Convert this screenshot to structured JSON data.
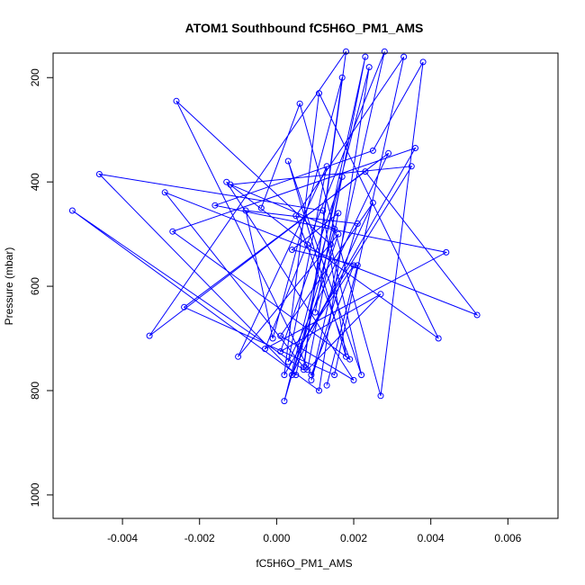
{
  "chart_data": {
    "type": "line",
    "title": "ATOM1 Southbound fC5H6O_PM1_AMS",
    "xlabel": "fC5H6O_PM1_AMS",
    "ylabel": "Pressure (mbar)",
    "xlim": [
      -0.0058,
      0.0073
    ],
    "ylim": [
      1045,
      153
    ],
    "y_reversed": true,
    "x_ticks": [
      {
        "value": -0.004,
        "label": "-0.004"
      },
      {
        "value": -0.002,
        "label": "-0.002"
      },
      {
        "value": 0.0,
        "label": "0.000"
      },
      {
        "value": 0.002,
        "label": "0.002"
      },
      {
        "value": 0.004,
        "label": "0.004"
      },
      {
        "value": 0.006,
        "label": "0.006"
      }
    ],
    "y_ticks": [
      {
        "value": 200,
        "label": "200"
      },
      {
        "value": 400,
        "label": "400"
      },
      {
        "value": 600,
        "label": "600"
      },
      {
        "value": 800,
        "label": "800"
      },
      {
        "value": 1000,
        "label": "1000"
      }
    ],
    "grid": false,
    "legend": "none",
    "series_color": "#0000ff",
    "series": [
      {
        "x": [
          -0.0004,
          0.0006,
          0.0027,
          0.0038,
          0.0025,
          -0.0016,
          0.0044,
          -0.0003,
          0.0028,
          0.0009,
          0.0021,
          -0.0008,
          -0.0001,
          0.0017,
          0.0007,
          -0.0029,
          0.0052,
          0.0023,
          -0.0024,
          0.0015,
          0.0033,
          0.0005,
          0.0019,
          -0.0027,
          0.0036,
          0.0002,
          0.0011,
          0.0042,
          0.0008,
          -0.0013,
          0.002,
          0.0001,
          0.0025,
          0.0004,
          0.0016,
          -0.001,
          0.0013,
          0.0003,
          0.0029,
          -0.0033,
          0.0018,
          0.0007,
          -0.0053,
          0.0011,
          0.0024,
          0.0002,
          0.0015,
          -0.0012,
          0.0035,
          0.0006,
          0.002,
          0.0009,
          -0.0026,
          0.0014,
          0.0022,
          0.0003,
          0.0018,
          0.0012,
          -0.0046,
          0.0005,
          0.0023,
          0.001,
          0.0017,
          0.0001,
          0.0027,
          0.0008,
          0.0016,
          0.0004,
          0.0021,
          0.0013
        ],
        "y": [
          450,
          250,
          810,
          170,
          340,
          445,
          535,
          720,
          150,
          780,
          480,
          455,
          700,
          200,
          755,
          420,
          655,
          380,
          640,
          770,
          160,
          465,
          740,
          495,
          335,
          770,
          230,
          700,
          520,
          400,
          780,
          695,
          440,
          770,
          500,
          735,
          370,
          745,
          345,
          695,
          150,
          760,
          455,
          800,
          180,
          820,
          490,
          405,
          370,
          715,
          560,
          770,
          245,
          520,
          770,
          360,
          735,
          455,
          385,
          770,
          160,
          650,
          390,
          725,
          615,
          760,
          460,
          530,
          560,
          790
        ]
      }
    ]
  }
}
